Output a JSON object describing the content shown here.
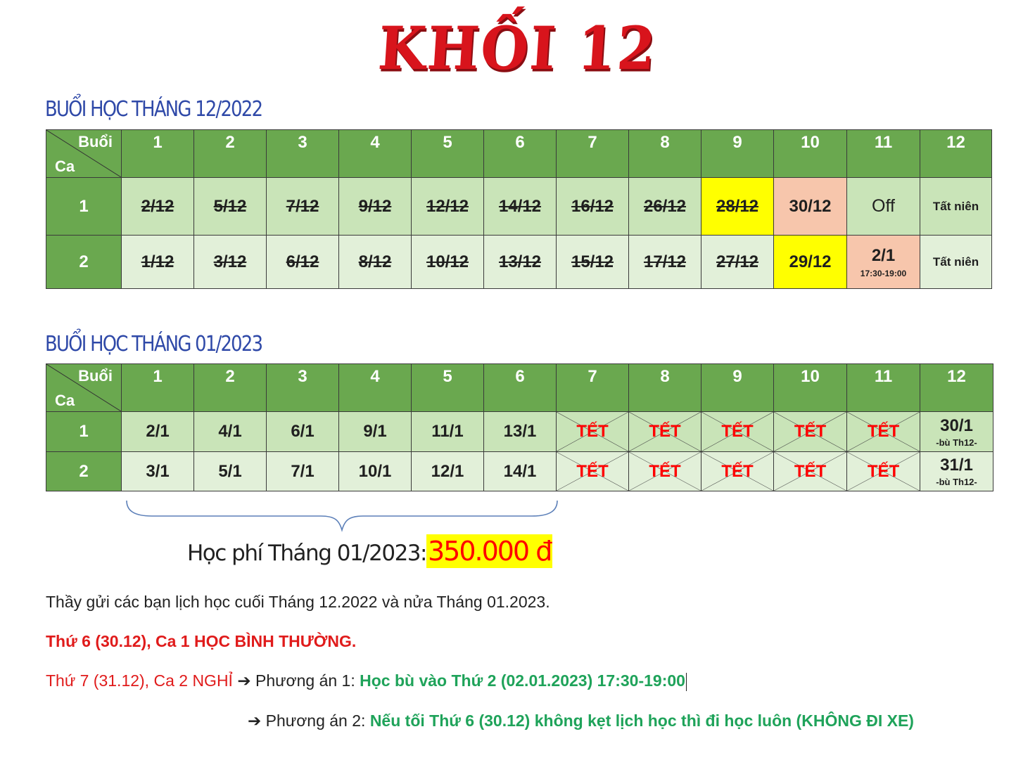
{
  "title": "KHỐI 12",
  "december": {
    "heading": "BUỔI HỌC THÁNG 12/2022",
    "corner_top": "Buổi",
    "corner_bottom": "Ca",
    "sessions": [
      "1",
      "2",
      "3",
      "4",
      "5",
      "6",
      "7",
      "8",
      "9",
      "10",
      "11",
      "12"
    ],
    "rows": [
      {
        "label": "1",
        "cells": [
          {
            "value": "2/12",
            "struck": true
          },
          {
            "value": "5/12",
            "struck": true
          },
          {
            "value": "7/12",
            "struck": true
          },
          {
            "value": "9/12",
            "struck": true
          },
          {
            "value": "12/12",
            "struck": true
          },
          {
            "value": "14/12",
            "struck": true
          },
          {
            "value": "16/12",
            "struck": true
          },
          {
            "value": "26/12",
            "struck": true
          },
          {
            "value": "28/12",
            "struck": true,
            "highlight": "#ffff00"
          },
          {
            "value": "30/12",
            "struck": false,
            "highlight": "#f7c6ac"
          },
          {
            "value": "Off",
            "struck": false
          },
          {
            "value": "Tất niên",
            "struck": false
          }
        ]
      },
      {
        "label": "2",
        "cells": [
          {
            "value": "1/12",
            "struck": true
          },
          {
            "value": "3/12",
            "struck": true
          },
          {
            "value": "6/12",
            "struck": true
          },
          {
            "value": "8/12",
            "struck": true
          },
          {
            "value": "10/12",
            "struck": true
          },
          {
            "value": "13/12",
            "struck": true
          },
          {
            "value": "15/12",
            "struck": true
          },
          {
            "value": "17/12",
            "struck": true
          },
          {
            "value": "27/12",
            "struck": true
          },
          {
            "value": "29/12",
            "struck": false,
            "highlight": "#ffff00"
          },
          {
            "value": "2/1",
            "struck": false,
            "highlight": "#f7c6ac",
            "note": "17:30-19:00"
          },
          {
            "value": "Tất niên",
            "struck": false
          }
        ]
      }
    ]
  },
  "january": {
    "heading": "BUỔI HỌC THÁNG 01/2023",
    "corner_top": "Buổi",
    "corner_bottom": "Ca",
    "sessions": [
      "1",
      "2",
      "3",
      "4",
      "5",
      "6",
      "7",
      "8",
      "9",
      "10",
      "11",
      "12"
    ],
    "rows": [
      {
        "label": "1",
        "cells": [
          {
            "value": "2/1"
          },
          {
            "value": "4/1"
          },
          {
            "value": "6/1"
          },
          {
            "value": "9/1"
          },
          {
            "value": "11/1"
          },
          {
            "value": "13/1"
          },
          {
            "value": "TẾT",
            "tet": true
          },
          {
            "value": "TẾT",
            "tet": true
          },
          {
            "value": "TẾT",
            "tet": true
          },
          {
            "value": "TẾT",
            "tet": true
          },
          {
            "value": "TẾT",
            "tet": true
          },
          {
            "value": "30/1",
            "note": "-bù Th12-"
          }
        ]
      },
      {
        "label": "2",
        "cells": [
          {
            "value": "3/1"
          },
          {
            "value": "5/1"
          },
          {
            "value": "7/1"
          },
          {
            "value": "10/1"
          },
          {
            "value": "12/1"
          },
          {
            "value": "14/1"
          },
          {
            "value": "TẾT",
            "tet": true
          },
          {
            "value": "TẾT",
            "tet": true
          },
          {
            "value": "TẾT",
            "tet": true
          },
          {
            "value": "TẾT",
            "tet": true
          },
          {
            "value": "TẾT",
            "tet": true
          },
          {
            "value": "31/1",
            "note": "-bù Th12-"
          }
        ]
      }
    ]
  },
  "fee": {
    "label": "Học phí Tháng 01/2023:",
    "amount": "350.000 đ"
  },
  "notes": {
    "line1": "Thầy gửi các bạn lịch học cuối Tháng 12.2022 và nửa Tháng 01.2023.",
    "line2": "Thứ 6 (30.12), Ca 1 HỌC BÌNH THƯỜNG.",
    "line3_red": "Thứ 7 (31.12), Ca 2 NGHỈ",
    "arrow": "🡪",
    "option1_label": " Phương án 1: ",
    "option1_text": "Học bù vào Thứ 2 (02.01.2023) 17:30-19:00",
    "option2_label": " Phương án 2: ",
    "option2_text": "Nếu tối Thứ 6 (30.12) không kẹt lịch học thì đi học luôn (KHÔNG ĐI XE)"
  }
}
